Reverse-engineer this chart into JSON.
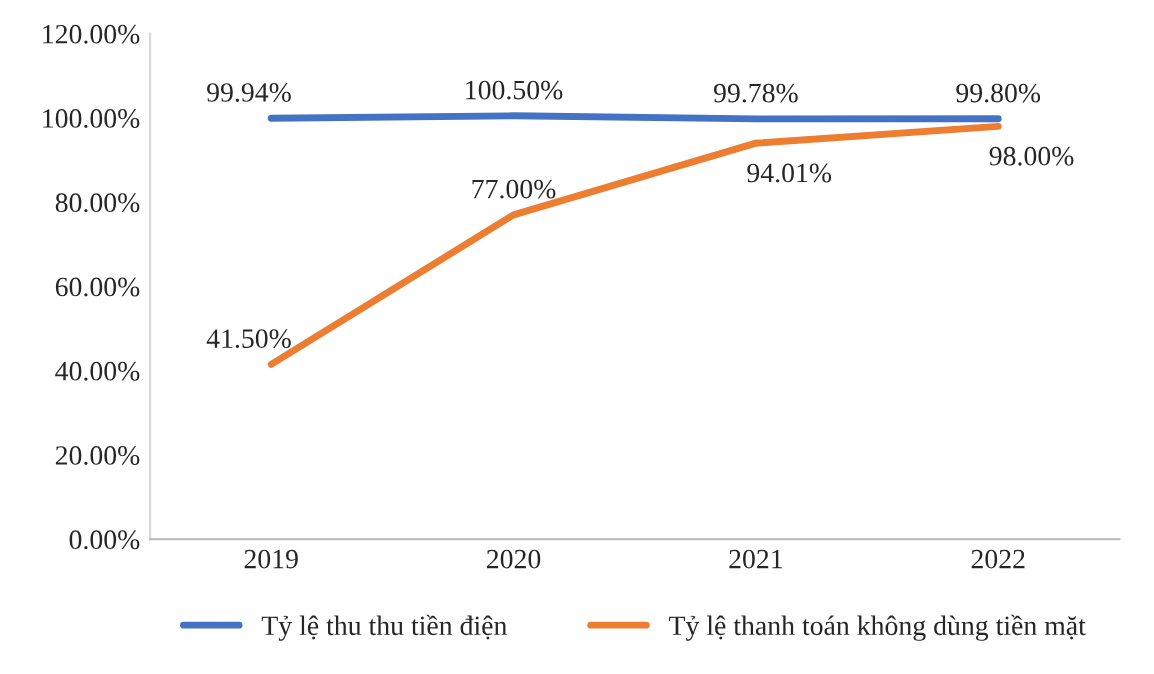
{
  "chart_data": {
    "type": "line",
    "categories": [
      "2019",
      "2020",
      "2021",
      "2022"
    ],
    "series": [
      {
        "name": "Tỷ lệ thu thu tiền điện",
        "color": "#4472c4",
        "values": [
          99.94,
          100.5,
          99.78,
          99.8
        ],
        "value_labels": [
          "99.94%",
          "100.50%",
          "99.78%",
          "99.80%"
        ]
      },
      {
        "name": "Tỷ lệ thanh toán không dùng tiền mặt",
        "color": "#ed7d31",
        "values": [
          41.5,
          77.0,
          94.01,
          98.0
        ],
        "value_labels": [
          "41.50%",
          "77.00%",
          "94.01%",
          "98.00%"
        ]
      }
    ],
    "ylim": [
      0,
      120
    ],
    "yticks": [
      {
        "value": 0,
        "label": "0.00%"
      },
      {
        "value": 20,
        "label": "20.00%"
      },
      {
        "value": 40,
        "label": "40.00%"
      },
      {
        "value": 60,
        "label": "60.00%"
      },
      {
        "value": 80,
        "label": "80.00%"
      },
      {
        "value": 100,
        "label": "100.00%"
      },
      {
        "value": 120,
        "label": "120.00%"
      }
    ],
    "grid": false,
    "legend": "bottom",
    "marker": "none",
    "line_style": "solid"
  }
}
